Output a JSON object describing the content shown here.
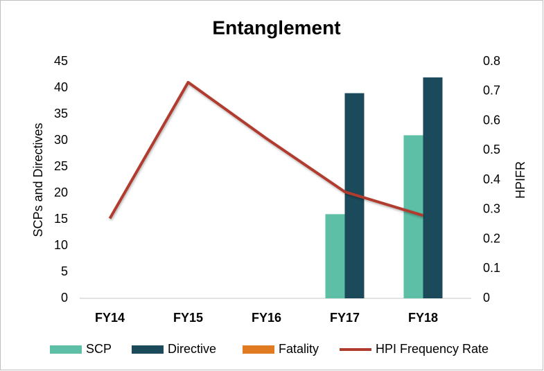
{
  "chart_data": {
    "type": "bar",
    "title": "Entanglement",
    "categories": [
      "FY14",
      "FY15",
      "FY16",
      "FY17",
      "FY18"
    ],
    "y_label": "SCPs and Directives",
    "y2_label": "HPIFR",
    "ylim": [
      0,
      45
    ],
    "yticks": [
      0,
      5,
      10,
      15,
      20,
      25,
      30,
      35,
      40,
      45
    ],
    "y2lim": [
      0,
      0.8
    ],
    "y2ticks": [
      0,
      0.1,
      0.2,
      0.3,
      0.4,
      0.5,
      0.6,
      0.7,
      0.8
    ],
    "grid": false,
    "legend": "bottom",
    "series": [
      {
        "name": "SCP",
        "type": "bar",
        "color": "#5cbfa6",
        "values": [
          null,
          null,
          null,
          16,
          31
        ]
      },
      {
        "name": "Directive",
        "type": "bar",
        "color": "#1b4a5a",
        "values": [
          null,
          null,
          null,
          39,
          42
        ]
      },
      {
        "name": "Fatality",
        "type": "bar",
        "color": "#e07b22",
        "values": [
          null,
          null,
          null,
          null,
          null
        ]
      },
      {
        "name": "HPI Frequency Rate",
        "type": "line",
        "axis": "y2",
        "color": "#b03a2e",
        "values": [
          0.27,
          0.73,
          0.54,
          0.36,
          0.28
        ]
      }
    ]
  }
}
